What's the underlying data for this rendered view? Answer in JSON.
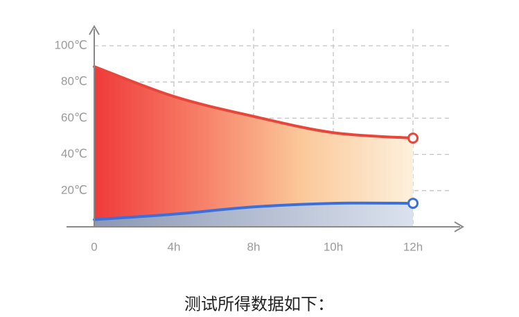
{
  "chart_data": {
    "type": "line",
    "categories": [
      "0",
      "4h",
      "8h",
      "10h",
      "12h"
    ],
    "series": [
      {
        "color": "#e8463a",
        "values": [
          88.5,
          72,
          61,
          52,
          49
        ]
      },
      {
        "color": "#3a6fdc",
        "values": [
          4,
          7,
          11,
          13,
          13
        ]
      }
    ],
    "ylim": [
      0,
      100
    ],
    "yticks": [
      {
        "value": 20,
        "label": "20℃"
      },
      {
        "value": 40,
        "label": "40℃"
      },
      {
        "value": 60,
        "label": "60℃"
      },
      {
        "value": 80,
        "label": "80℃"
      },
      {
        "value": 100,
        "label": "100℃"
      }
    ],
    "grid": true
  },
  "caption": "测试所得数据如下："
}
